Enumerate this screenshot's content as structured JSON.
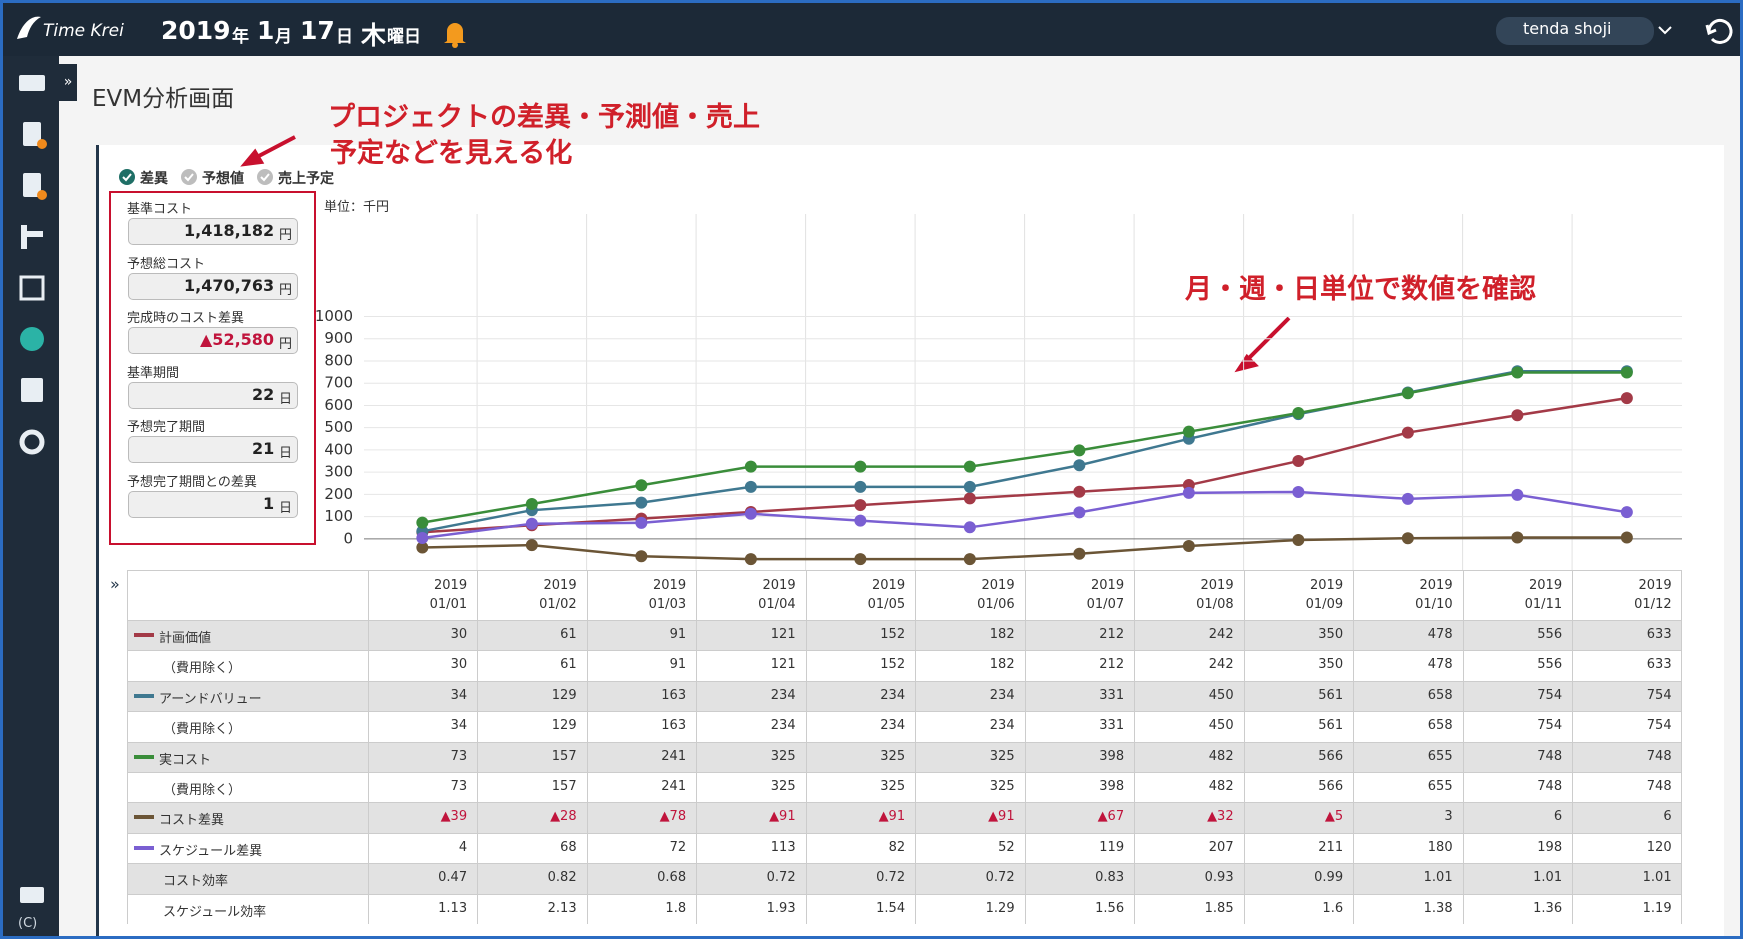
{
  "header": {
    "logo": "Time Krei",
    "date": [
      {
        "num": "2019",
        "unit": "年"
      },
      {
        "num": "1",
        "unit": "月"
      },
      {
        "num": "17",
        "unit": "日"
      },
      {
        "num": "木",
        "unit": "曜日"
      }
    ],
    "user": "tenda shoji"
  },
  "sidebar": {
    "footer": "(C)"
  },
  "page_title": "EVM分析画面",
  "annotations": [
    {
      "lines": [
        "プロジェクトの差異・予測値・売上",
        "予定などを見える化"
      ]
    },
    {
      "lines": [
        "月・週・日単位で数値を確認"
      ]
    }
  ],
  "legend_toggles": [
    {
      "label": "差異",
      "checked": true
    },
    {
      "label": "予想値",
      "checked": false
    },
    {
      "label": "売上予定",
      "checked": false
    }
  ],
  "metrics": [
    {
      "label": "基準コスト",
      "value": "1,418,182",
      "unit": "円",
      "color": "#222222"
    },
    {
      "label": "予想総コスト",
      "value": "1,470,763",
      "unit": "円",
      "color": "#222222"
    },
    {
      "label": "完成時のコスト差異",
      "value": "▲52,580",
      "unit": "円",
      "color": "#c0143c"
    },
    {
      "label": "基準期間",
      "value": "22",
      "unit": "日",
      "color": "#222222"
    },
    {
      "label": "予想完了期間",
      "value": "21",
      "unit": "日",
      "color": "#222222"
    },
    {
      "label": "予想完了期間との差異",
      "value": "1",
      "unit": "日",
      "color": "#222222"
    }
  ],
  "unit_note": "単位：千円",
  "table": {
    "columns": [
      {
        "year": "2019",
        "date": "01/01"
      },
      {
        "year": "2019",
        "date": "01/02"
      },
      {
        "year": "2019",
        "date": "01/03"
      },
      {
        "year": "2019",
        "date": "01/04"
      },
      {
        "year": "2019",
        "date": "01/05"
      },
      {
        "year": "2019",
        "date": "01/06"
      },
      {
        "year": "2019",
        "date": "01/07"
      },
      {
        "year": "2019",
        "date": "01/08"
      },
      {
        "year": "2019",
        "date": "01/09"
      },
      {
        "year": "2019",
        "date": "01/10"
      },
      {
        "year": "2019",
        "date": "01/11"
      },
      {
        "year": "2019",
        "date": "01/12"
      }
    ],
    "sub_rows": [
      {
        "label": "（費用除く）",
        "values": [
          30,
          61,
          91,
          121,
          152,
          182,
          212,
          242,
          350,
          478,
          556,
          633
        ]
      },
      {
        "label": "（費用除く）",
        "values": [
          34,
          129,
          163,
          234,
          234,
          234,
          331,
          450,
          561,
          658,
          754,
          754
        ]
      },
      {
        "label": "（費用除く）",
        "values": [
          73,
          157,
          241,
          325,
          325,
          325,
          398,
          482,
          566,
          655,
          748,
          748
        ]
      }
    ],
    "ratio_rows": [
      {
        "label": "コスト効率",
        "values": [
          0.47,
          0.82,
          0.68,
          0.72,
          0.72,
          0.72,
          0.83,
          0.93,
          0.99,
          1.01,
          1.01,
          1.01
        ]
      },
      {
        "label": "スケジュール効率",
        "values": [
          1.13,
          2.13,
          1.8,
          1.93,
          1.54,
          1.29,
          1.56,
          1.85,
          1.6,
          1.38,
          1.36,
          1.19
        ]
      }
    ]
  },
  "chart_data": {
    "type": "line",
    "ylim": [
      -140,
      1000
    ],
    "yticks": [
      0,
      100,
      200,
      300,
      400,
      500,
      600,
      700,
      800,
      900,
      1000
    ],
    "grid": true,
    "series": [
      {
        "name": "計画価値",
        "color": "#a33a47",
        "values": [
          30,
          61,
          91,
          121,
          152,
          182,
          212,
          242,
          350,
          478,
          556,
          633
        ]
      },
      {
        "name": "アーンドバリュー",
        "color": "#3f7890",
        "values": [
          34,
          129,
          163,
          234,
          234,
          234,
          331,
          450,
          561,
          658,
          754,
          754
        ]
      },
      {
        "name": "実コスト",
        "color": "#3a8d3a",
        "values": [
          73,
          157,
          241,
          325,
          325,
          325,
          398,
          482,
          566,
          655,
          748,
          748
        ]
      },
      {
        "name": "コスト差異",
        "color": "#6b5536",
        "values": [
          -39,
          -28,
          -78,
          -91,
          -91,
          -91,
          -67,
          -32,
          -5,
          3,
          6,
          6
        ],
        "value_labels": [
          "▲39",
          "▲28",
          "▲78",
          "▲91",
          "▲91",
          "▲91",
          "▲67",
          "▲32",
          "▲5",
          "3",
          "6",
          "6"
        ]
      },
      {
        "name": "スケジュール差異",
        "color": "#7a5fd2",
        "values": [
          4,
          68,
          72,
          113,
          82,
          52,
          119,
          207,
          211,
          180,
          198,
          120
        ]
      }
    ]
  }
}
